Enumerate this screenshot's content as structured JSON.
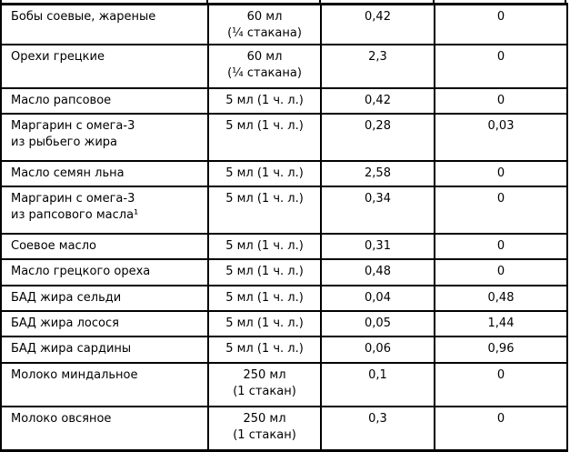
{
  "colors": {
    "background": "#ffffff",
    "border": "#000000",
    "text": "#000000"
  },
  "table": {
    "rows": [
      {
        "name": "Бобы соевые, жареные",
        "serving": "60 мл\n(¼ стакана)",
        "value1": "0,42",
        "value2": "0"
      },
      {
        "name": "Орехи грецкие",
        "serving": "60 мл\n(¼ стакана)",
        "value1": "2,3",
        "value2": "0"
      },
      {
        "name": "Масло рапсовое",
        "serving": "5 мл (1 ч. л.)",
        "value1": "0,42",
        "value2": "0"
      },
      {
        "name": "Маргарин с омега-3\nиз рыбьего жира",
        "serving": "5 мл (1 ч. л.)",
        "value1": "0,28",
        "value2": "0,03"
      },
      {
        "name": "Масло семян льна",
        "serving": "5 мл (1 ч. л.)",
        "value1": "2,58",
        "value2": "0"
      },
      {
        "name": "Маргарин с омега-3\nиз рапсового масла¹",
        "serving": "5 мл (1 ч. л.)",
        "value1": "0,34",
        "value2": "0"
      },
      {
        "name": "Соевое масло",
        "serving": "5 мл (1 ч. л.)",
        "value1": "0,31",
        "value2": "0"
      },
      {
        "name": "Масло грецкого ореха",
        "serving": "5 мл (1 ч. л.)",
        "value1": "0,48",
        "value2": "0"
      },
      {
        "name": "БАД жира сельди",
        "serving": "5 мл (1 ч. л.)",
        "value1": "0,04",
        "value2": "0,48"
      },
      {
        "name": "БАД жира лосося",
        "serving": "5 мл (1 ч. л.)",
        "value1": "0,05",
        "value2": "1,44"
      },
      {
        "name": "БАД жира сардины",
        "serving": "5 мл (1 ч. л.)",
        "value1": "0,06",
        "value2": "0,96"
      },
      {
        "name": "Молоко миндальное",
        "serving": "250 мл\n(1 стакан)",
        "value1": "0,1",
        "value2": "0"
      },
      {
        "name": "Молоко овсяное",
        "serving": "250 мл\n(1 стакан)",
        "value1": "0,3",
        "value2": "0"
      }
    ]
  }
}
